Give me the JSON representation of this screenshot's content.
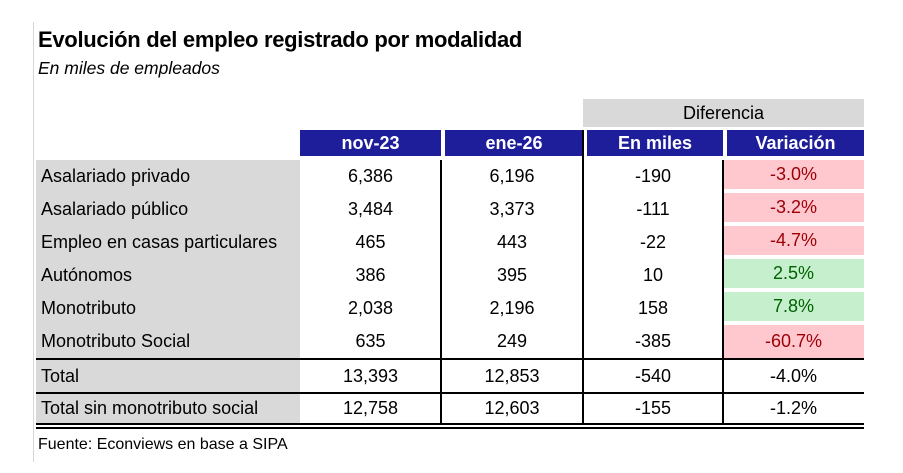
{
  "chart_data": {
    "type": "table",
    "title": "Evolución del empleo registrado por modalidad",
    "subtitle": "En miles de empleados",
    "diferencia_label": "Diferencia",
    "columns": [
      "nov-23",
      "ene-26",
      "En miles",
      "Variación"
    ],
    "rows": [
      {
        "label": "Asalariado privado",
        "values": [
          "6,386",
          "6,196",
          "-190",
          "-3.0%"
        ],
        "trend": "negative"
      },
      {
        "label": "Asalariado público",
        "values": [
          "3,484",
          "3,373",
          "-111",
          "-3.2%"
        ],
        "trend": "negative"
      },
      {
        "label": "Empleo en casas particulares",
        "values": [
          "465",
          "443",
          "-22",
          "-4.7%"
        ],
        "trend": "negative"
      },
      {
        "label": "Autónomos",
        "values": [
          "386",
          "395",
          "10",
          "2.5%"
        ],
        "trend": "positive"
      },
      {
        "label": "Monotributo",
        "values": [
          "2,038",
          "2,196",
          "158",
          "7.8%"
        ],
        "trend": "positive"
      },
      {
        "label": "Monotributo Social",
        "values": [
          "635",
          "249",
          "-385",
          "-60.7%"
        ],
        "trend": "negative"
      }
    ],
    "totals": [
      {
        "label": "Total",
        "values": [
          "13,393",
          "12,853",
          "-540",
          "-4.0%"
        ]
      },
      {
        "label": "Total sin monotributo social",
        "values": [
          "12,758",
          "12,603",
          "-155",
          "-1.2%"
        ]
      }
    ],
    "source": "Fuente: Econviews en base a SIPA",
    "colors": {
      "header_bg": "#1E1E9B",
      "header_text": "#FFFFFF",
      "label_bg": "#D9D9D9",
      "band_bg": "#D9D9D9",
      "negative_bg": "#FFC7CE",
      "negative_text": "#9C0006",
      "positive_bg": "#C6EFCE",
      "positive_text": "#006100"
    }
  }
}
